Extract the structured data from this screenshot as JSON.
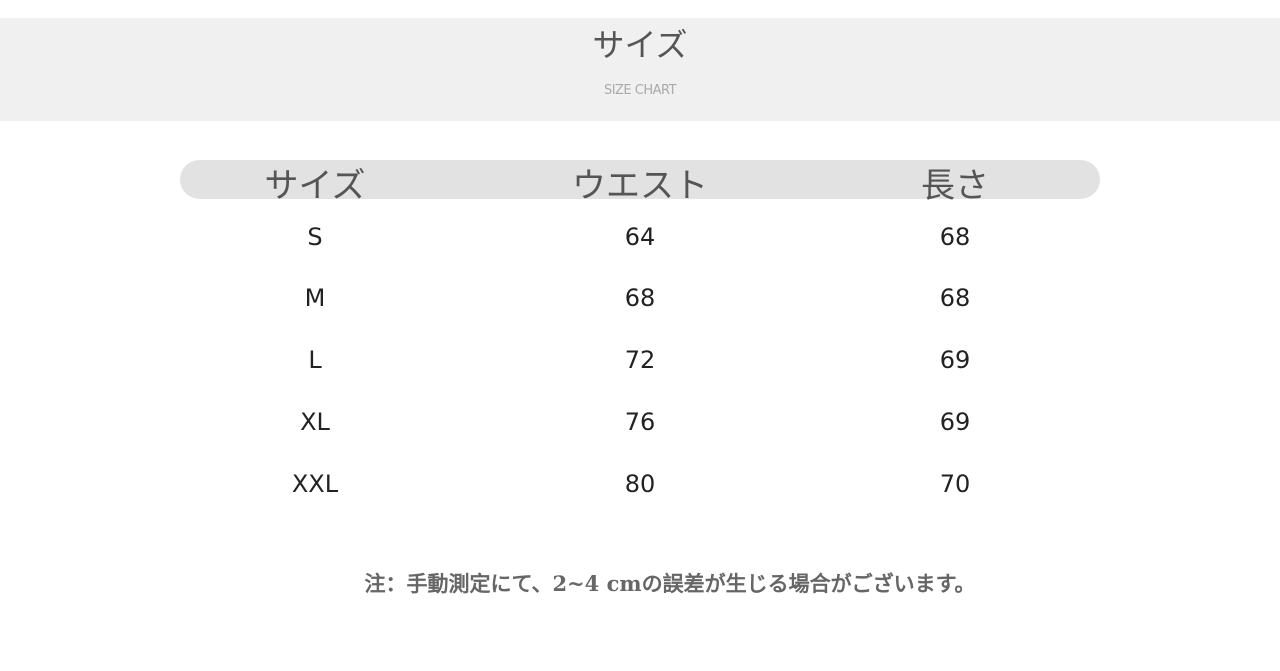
{
  "header": {
    "title": "サイズ",
    "subtitle": "SIZE CHART"
  },
  "table": {
    "columns": [
      "サイズ",
      "ウエスト",
      "長さ"
    ],
    "rows": [
      [
        "S",
        "64",
        "68"
      ],
      [
        "M",
        "68",
        "68"
      ],
      [
        "L",
        "72",
        "69"
      ],
      [
        "XL",
        "76",
        "69"
      ],
      [
        "XXL",
        "80",
        "70"
      ]
    ]
  },
  "note": "注：手動測定にて、2~4 cmの誤差が生じる場合がございます。"
}
